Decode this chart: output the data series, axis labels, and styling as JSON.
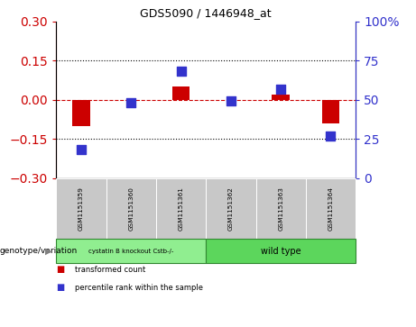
{
  "title": "GDS5090 / 1446948_at",
  "samples": [
    "GSM1151359",
    "GSM1151360",
    "GSM1151361",
    "GSM1151362",
    "GSM1151363",
    "GSM1151364"
  ],
  "transformed_counts": [
    -0.1,
    0.0,
    0.05,
    0.0,
    0.02,
    -0.09
  ],
  "percentile_ranks": [
    18,
    48,
    68,
    49,
    57,
    27
  ],
  "group1_label": "cystatin B knockout Cstb-/-",
  "group2_label": "wild type",
  "group1_color": "#90EE90",
  "group2_color": "#5CD65C",
  "genotype_label": "genotype/variation",
  "bar_color": "#CC0000",
  "dot_color": "#3333CC",
  "ylim_left": [
    -0.3,
    0.3
  ],
  "ylim_right": [
    0,
    100
  ],
  "yticks_left": [
    -0.3,
    -0.15,
    0,
    0.15,
    0.3
  ],
  "yticks_right": [
    0,
    25,
    50,
    75,
    100
  ],
  "hline_dotted_vals": [
    -0.15,
    0.15
  ],
  "legend_red_label": "transformed count",
  "legend_blue_label": "percentile rank within the sample",
  "sample_box_color": "#C8C8C8",
  "bar_width": 0.35,
  "dot_size": 50
}
